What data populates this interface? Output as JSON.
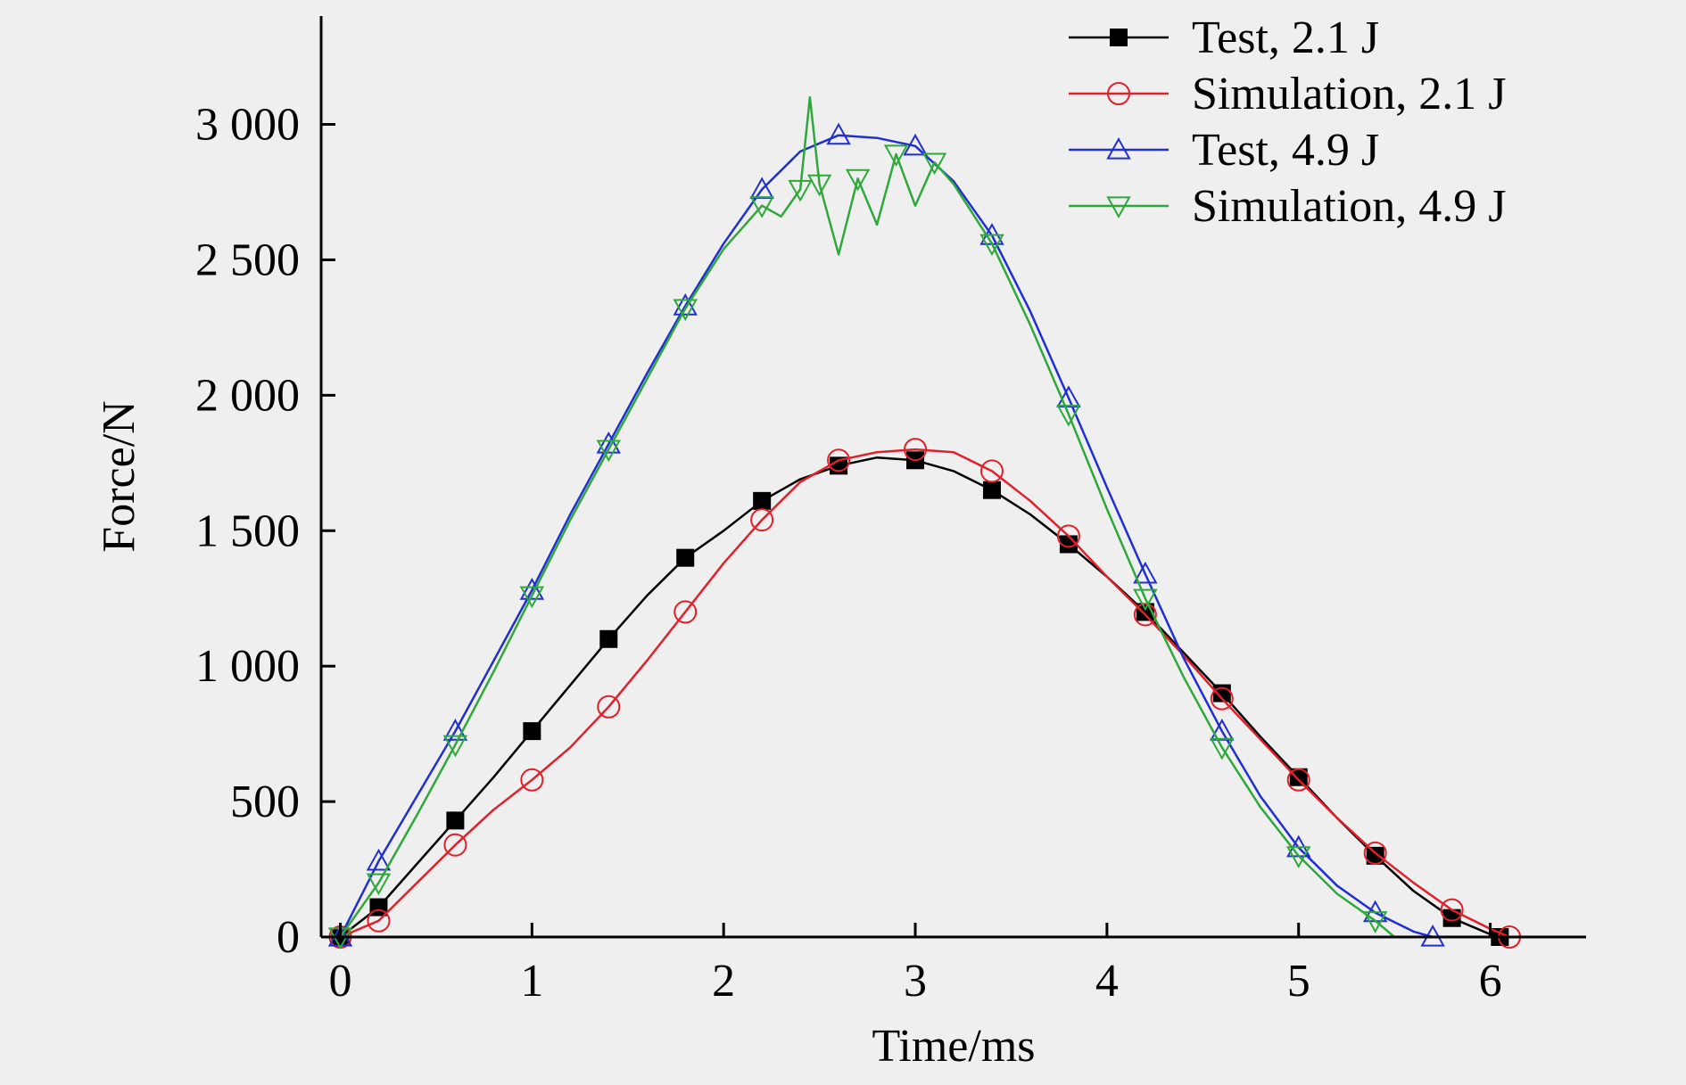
{
  "chart_data": {
    "type": "line",
    "xlabel": "Time/ms",
    "ylabel": "Force/N",
    "xlim": [
      -0.1,
      6.5
    ],
    "ylim": [
      0,
      3400
    ],
    "xticks": [
      0,
      1,
      2,
      3,
      4,
      5,
      6
    ],
    "xtick_labels": [
      "0",
      "1",
      "2",
      "3",
      "4",
      "5",
      "6"
    ],
    "yticks": [
      0,
      500,
      1000,
      1500,
      2000,
      2500,
      3000
    ],
    "ytick_labels": [
      "0",
      "500",
      "1 000",
      "1 500",
      "2 000",
      "2 500",
      "3 000"
    ],
    "grid": false,
    "legend_position": "top-right",
    "series": [
      {
        "name": "Test, 2.1 J",
        "color": "#000000",
        "marker": "filled-square",
        "x": [
          0.0,
          0.2,
          0.4,
          0.6,
          0.8,
          1.0,
          1.2,
          1.4,
          1.6,
          1.8,
          2.0,
          2.2,
          2.4,
          2.6,
          2.8,
          3.0,
          3.2,
          3.4,
          3.6,
          3.8,
          4.0,
          4.2,
          4.4,
          4.6,
          4.8,
          5.0,
          5.2,
          5.4,
          5.6,
          5.8,
          6.0,
          6.05
        ],
        "y": [
          0,
          110,
          270,
          430,
          590,
          760,
          930,
          1100,
          1260,
          1400,
          1500,
          1610,
          1690,
          1740,
          1770,
          1760,
          1720,
          1650,
          1560,
          1450,
          1330,
          1200,
          1050,
          900,
          740,
          590,
          440,
          300,
          170,
          70,
          10,
          0
        ]
      },
      {
        "name": "Simulation, 2.1 J",
        "color": "#e0202a",
        "marker": "open-circle",
        "x": [
          0.0,
          0.2,
          0.4,
          0.6,
          0.8,
          1.0,
          1.2,
          1.4,
          1.6,
          1.8,
          2.0,
          2.2,
          2.4,
          2.6,
          2.8,
          3.0,
          3.2,
          3.4,
          3.6,
          3.8,
          4.0,
          4.2,
          4.4,
          4.6,
          4.8,
          5.0,
          5.2,
          5.4,
          5.6,
          5.8,
          6.0,
          6.1
        ],
        "y": [
          0,
          60,
          200,
          340,
          470,
          580,
          700,
          850,
          1020,
          1200,
          1380,
          1540,
          1680,
          1760,
          1790,
          1800,
          1790,
          1720,
          1610,
          1480,
          1330,
          1190,
          1040,
          880,
          730,
          580,
          440,
          310,
          200,
          100,
          30,
          0
        ]
      },
      {
        "name": "Test, 4.9 J",
        "color": "#1f2fd0",
        "marker": "open-triangle-up",
        "x": [
          0.0,
          0.2,
          0.4,
          0.6,
          0.8,
          1.0,
          1.2,
          1.4,
          1.6,
          1.8,
          2.0,
          2.2,
          2.4,
          2.6,
          2.8,
          3.0,
          3.2,
          3.4,
          3.6,
          3.8,
          4.0,
          4.2,
          4.4,
          4.6,
          4.8,
          5.0,
          5.2,
          5.4,
          5.6,
          5.7
        ],
        "y": [
          0,
          280,
          520,
          760,
          1020,
          1280,
          1560,
          1820,
          2080,
          2330,
          2560,
          2760,
          2900,
          2960,
          2950,
          2920,
          2790,
          2590,
          2310,
          1990,
          1660,
          1340,
          1030,
          760,
          520,
          330,
          190,
          90,
          20,
          0
        ]
      },
      {
        "name": "Simulation, 4.9 J",
        "color": "#2fa83a",
        "marker": "open-triangle-down",
        "x": [
          0.0,
          0.2,
          0.4,
          0.6,
          0.8,
          1.0,
          1.2,
          1.4,
          1.6,
          1.8,
          2.0,
          2.2,
          2.3,
          2.4,
          2.45,
          2.5,
          2.6,
          2.7,
          2.8,
          2.9,
          3.0,
          3.1,
          3.2,
          3.4,
          3.6,
          3.8,
          4.0,
          4.2,
          4.4,
          4.6,
          4.8,
          5.0,
          5.2,
          5.4,
          5.5
        ],
        "y": [
          0,
          200,
          450,
          710,
          980,
          1260,
          1540,
          1800,
          2060,
          2320,
          2540,
          2700,
          2660,
          2760,
          3100,
          2780,
          2520,
          2800,
          2630,
          2890,
          2700,
          2860,
          2780,
          2560,
          2260,
          1930,
          1580,
          1250,
          960,
          700,
          480,
          300,
          160,
          60,
          0
        ]
      }
    ]
  }
}
